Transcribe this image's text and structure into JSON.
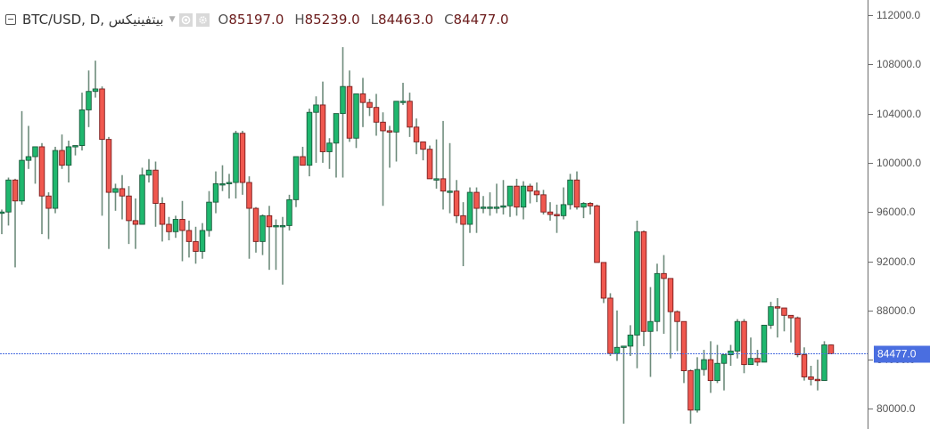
{
  "header": {
    "symbol": "BTC/USD, D, بيتفينيكس",
    "ohlc": [
      {
        "key": "O",
        "value": "85197.0"
      },
      {
        "key": "H",
        "value": "85239.0"
      },
      {
        "key": "L",
        "value": "84463.0"
      },
      {
        "key": "C",
        "value": "84477.0"
      }
    ]
  },
  "colors": {
    "up": "#1fb76e",
    "down": "#f0584f",
    "up_border": "#1c5a3c",
    "down_border": "#7a1c1c",
    "wick": "#6e8c7c",
    "price_line": "#4a6ee0",
    "axis_text": "#555555"
  },
  "axis": {
    "ticks": [
      "112000.0",
      "108000.0",
      "104000.0",
      "100000.0",
      "96000.0",
      "92000.0",
      "88000.0",
      "84000.0",
      "80000.0"
    ],
    "current_price_label": "84477.0"
  },
  "chart_data": {
    "type": "candlestick",
    "title": "BTC/USD, D, بيتفينيكس",
    "xlabel": "",
    "ylabel": "",
    "ylim": [
      78700,
      113200
    ],
    "y_ticks": [
      80000,
      84000,
      88000,
      92000,
      96000,
      100000,
      104000,
      108000,
      112000
    ],
    "grid": false,
    "current_price": 84477.0,
    "last_candle": {
      "open": 85197.0,
      "high": 85239.0,
      "low": 84463.0,
      "close": 84477.0
    },
    "candles": [
      [
        96400,
        98100,
        95600,
        97400
      ],
      [
        97400,
        97500,
        96100,
        96300
      ],
      [
        96300,
        97800,
        95900,
        97100
      ],
      [
        97100,
        98000,
        94800,
        95900
      ],
      [
        95900,
        96200,
        94200,
        96000
      ],
      [
        96000,
        98800,
        94900,
        98600
      ],
      [
        98600,
        98700,
        91500,
        96900
      ],
      [
        96900,
        104200,
        96600,
        100200
      ],
      [
        100200,
        103000,
        99500,
        100500
      ],
      [
        100500,
        100900,
        98300,
        101300
      ],
      [
        101300,
        101600,
        94200,
        97300
      ],
      [
        97300,
        97600,
        93800,
        96300
      ],
      [
        96300,
        101300,
        95900,
        101000
      ],
      [
        101000,
        102300,
        99500,
        99800
      ],
      [
        99800,
        101800,
        98400,
        101300
      ],
      [
        101300,
        101400,
        100600,
        101400
      ],
      [
        101400,
        105700,
        101000,
        104300
      ],
      [
        104300,
        107500,
        102900,
        105800
      ],
      [
        105800,
        108300,
        105300,
        106000
      ],
      [
        106000,
        106200,
        95700,
        101900
      ],
      [
        101900,
        102100,
        93000,
        97600
      ],
      [
        97600,
        98300,
        96100,
        97900
      ],
      [
        97900,
        99000,
        95400,
        97300
      ],
      [
        97300,
        98100,
        93400,
        95300
      ],
      [
        95300,
        97100,
        93000,
        95000
      ],
      [
        95000,
        99600,
        96200,
        99000
      ],
      [
        99000,
        100300,
        98400,
        99400
      ],
      [
        99400,
        100100,
        94800,
        96700
      ],
      [
        96700,
        97200,
        93600,
        95000
      ],
      [
        95000,
        95600,
        93700,
        94400
      ],
      [
        94400,
        95700,
        93900,
        95400
      ],
      [
        95400,
        96900,
        92000,
        94500
      ],
      [
        94500,
        95300,
        92300,
        93600
      ],
      [
        93600,
        94800,
        91800,
        92800
      ],
      [
        92800,
        95100,
        92200,
        94500
      ],
      [
        94500,
        97700,
        94000,
        96800
      ],
      [
        96800,
        99300,
        95900,
        98300
      ],
      [
        98300,
        99800,
        97700,
        98300
      ],
      [
        98300,
        99100,
        97100,
        98400
      ],
      [
        98400,
        102600,
        97100,
        102400
      ],
      [
        102400,
        102600,
        97400,
        98400
      ],
      [
        98400,
        98900,
        92200,
        96300
      ],
      [
        96300,
        96400,
        92700,
        93600
      ],
      [
        93600,
        95800,
        92500,
        95700
      ],
      [
        95700,
        96500,
        91300,
        94800
      ],
      [
        94800,
        95400,
        91300,
        94900
      ],
      [
        94900,
        95600,
        90100,
        94900
      ],
      [
        94900,
        97400,
        94500,
        97000
      ],
      [
        97000,
        100500,
        96400,
        100500
      ],
      [
        100500,
        101300,
        99800,
        99800
      ],
      [
        99800,
        104400,
        98900,
        104100
      ],
      [
        104100,
        105400,
        100000,
        104700
      ],
      [
        104700,
        106600,
        100000,
        100900
      ],
      [
        100900,
        102000,
        99500,
        101600
      ],
      [
        101600,
        104000,
        98800,
        104000
      ],
      [
        104000,
        109400,
        98800,
        106200
      ],
      [
        106200,
        107500,
        101700,
        102000
      ],
      [
        102000,
        104700,
        101200,
        105600
      ],
      [
        105600,
        106900,
        102900,
        104900
      ],
      [
        104900,
        105200,
        103800,
        104500
      ],
      [
        104500,
        105600,
        102200,
        103300
      ],
      [
        103300,
        104100,
        96500,
        102600
      ],
      [
        102600,
        103000,
        99600,
        102500
      ],
      [
        102500,
        104400,
        100100,
        105000
      ],
      [
        105000,
        106500,
        104700,
        105000
      ],
      [
        105000,
        105700,
        102100,
        102900
      ],
      [
        102900,
        103600,
        100700,
        101700
      ],
      [
        101700,
        101100,
        100200,
        101100
      ],
      [
        101100,
        101400,
        99000,
        98700
      ],
      [
        98700,
        101900,
        97900,
        98700
      ],
      [
        98700,
        103400,
        96200,
        97700
      ],
      [
        97700,
        101600,
        95900,
        97700
      ],
      [
        97700,
        98600,
        95100,
        95700
      ],
      [
        95700,
        96800,
        91600,
        95000
      ],
      [
        95000,
        98000,
        94300,
        97600
      ],
      [
        97600,
        98000,
        94300,
        96300
      ],
      [
        96300,
        97300,
        95900,
        96400
      ],
      [
        96400,
        97600,
        95700,
        96400
      ],
      [
        96400,
        98300,
        95900,
        96400
      ],
      [
        96400,
        98600,
        95800,
        96500
      ],
      [
        96500,
        97000,
        95600,
        98100
      ],
      [
        98100,
        98700,
        95700,
        96400
      ],
      [
        96400,
        98500,
        95400,
        98100
      ],
      [
        98100,
        98300,
        96700,
        97700
      ],
      [
        97700,
        98400,
        96800,
        97400
      ],
      [
        97400,
        97800,
        95800,
        96000
      ],
      [
        96000,
        96800,
        95300,
        95800
      ],
      [
        95800,
        96600,
        94300,
        95700
      ],
      [
        95700,
        98000,
        95400,
        96600
      ],
      [
        96600,
        99100,
        96200,
        98600
      ],
      [
        98600,
        99300,
        96200,
        96400
      ],
      [
        96400,
        96800,
        95500,
        96700
      ],
      [
        96700,
        96800,
        95800,
        96500
      ],
      [
        96500,
        96600,
        91900,
        91900
      ],
      [
        91900,
        91900,
        88600,
        89000
      ],
      [
        89000,
        89400,
        84300,
        84500
      ],
      [
        84500,
        88000,
        83900,
        85000
      ],
      [
        85000,
        84700,
        78800,
        85100
      ],
      [
        85100,
        86800,
        84300,
        86000
      ],
      [
        86000,
        95300,
        83300,
        94400
      ],
      [
        94400,
        94500,
        85100,
        86300
      ],
      [
        86300,
        89900,
        82600,
        87100
      ],
      [
        87100,
        91800,
        86300,
        91000
      ],
      [
        91000,
        92500,
        86100,
        90600
      ],
      [
        90600,
        90300,
        84100,
        87900
      ],
      [
        87900,
        88000,
        84700,
        87100
      ],
      [
        87100,
        86800,
        82100,
        83100
      ],
      [
        83100,
        83200,
        78800,
        79900
      ],
      [
        79900,
        84200,
        79700,
        83200
      ],
      [
        83200,
        84800,
        82700,
        84000
      ],
      [
        84000,
        85500,
        81300,
        82300
      ],
      [
        82300,
        85200,
        82100,
        83700
      ],
      [
        83700,
        84200,
        81500,
        84400
      ],
      [
        84400,
        85200,
        83500,
        84700
      ],
      [
        84700,
        87300,
        84100,
        87100
      ],
      [
        87100,
        87300,
        82900,
        83600
      ],
      [
        83600,
        85800,
        83900,
        84100
      ],
      [
        84100,
        84800,
        83500,
        83800
      ],
      [
        83800,
        86600,
        84000,
        86800
      ],
      [
        86800,
        88700,
        86500,
        88300
      ],
      [
        88300,
        89000,
        85800,
        88200
      ],
      [
        88200,
        87900,
        86300,
        87600
      ],
      [
        87600,
        87500,
        85400,
        87400
      ],
      [
        87400,
        87500,
        84200,
        84400
      ],
      [
        84400,
        85000,
        82300,
        82600
      ],
      [
        82600,
        83500,
        81900,
        82400
      ],
      [
        82400,
        84000,
        81500,
        82300
      ],
      [
        82300,
        85500,
        82300,
        85200
      ],
      [
        85197,
        85239,
        84463,
        84477
      ]
    ]
  }
}
